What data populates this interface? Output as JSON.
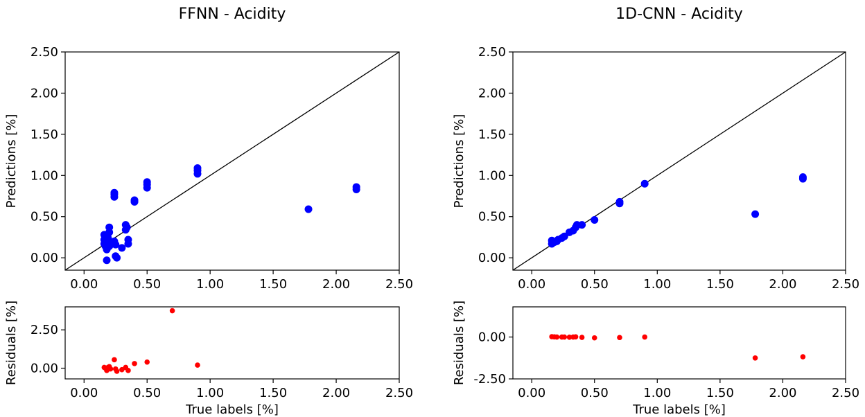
{
  "chart_data": [
    {
      "type": "scatter",
      "panel": "main",
      "title": "FFNN - Acidity",
      "xlabel": "",
      "ylabel": "Predictions [%]",
      "xlim": [
        -0.15,
        2.5
      ],
      "ylim": [
        -0.15,
        2.5
      ],
      "xticks": [
        "0.00",
        "0.50",
        "1.00",
        "1.50",
        "2.00",
        "2.50"
      ],
      "yticks": [
        "0.00",
        "0.50",
        "1.00",
        "1.50",
        "2.00",
        "2.50"
      ],
      "xtick_values": [
        0,
        0.5,
        1,
        1.5,
        2,
        2.5
      ],
      "ytick_values": [
        0,
        0.5,
        1,
        1.5,
        2,
        2.5
      ],
      "color": "#0000ff",
      "identity_line": true,
      "points": [
        [
          0.16,
          0.28
        ],
        [
          0.16,
          0.22
        ],
        [
          0.16,
          0.17
        ],
        [
          0.17,
          0.14
        ],
        [
          0.18,
          0.1
        ],
        [
          0.18,
          -0.03
        ],
        [
          0.19,
          0.19
        ],
        [
          0.19,
          0.24
        ],
        [
          0.2,
          0.31
        ],
        [
          0.2,
          0.37
        ],
        [
          0.2,
          0.14
        ],
        [
          0.21,
          0.16
        ],
        [
          0.24,
          0.77
        ],
        [
          0.24,
          0.79
        ],
        [
          0.24,
          0.74
        ],
        [
          0.24,
          0.2
        ],
        [
          0.25,
          0.16
        ],
        [
          0.25,
          0.02
        ],
        [
          0.26,
          0.0
        ],
        [
          0.3,
          0.12
        ],
        [
          0.33,
          0.34
        ],
        [
          0.33,
          0.4
        ],
        [
          0.34,
          0.37
        ],
        [
          0.35,
          0.17
        ],
        [
          0.35,
          0.22
        ],
        [
          0.4,
          0.68
        ],
        [
          0.4,
          0.7
        ],
        [
          0.5,
          0.85
        ],
        [
          0.5,
          0.89
        ],
        [
          0.5,
          0.92
        ],
        [
          0.9,
          1.02
        ],
        [
          0.9,
          1.06
        ],
        [
          0.9,
          1.09
        ],
        [
          1.78,
          0.59
        ],
        [
          2.16,
          0.83
        ],
        [
          2.16,
          0.86
        ]
      ]
    },
    {
      "type": "scatter",
      "panel": "residuals",
      "title": "",
      "xlabel": "True labels [%]",
      "ylabel": "Residuals [%]",
      "xlim": [
        -0.15,
        2.5
      ],
      "ylim": [
        -0.7,
        4.0
      ],
      "xticks": [
        "0.00",
        "0.50",
        "1.00",
        "1.50",
        "2.00",
        "2.50"
      ],
      "yticks": [
        "0.00",
        "2.50"
      ],
      "xtick_values": [
        0,
        0.5,
        1,
        1.5,
        2,
        2.5
      ],
      "ytick_values": [
        0,
        2.5
      ],
      "color": "#ff0000",
      "points": [
        [
          0.16,
          0.05
        ],
        [
          0.17,
          0.0
        ],
        [
          0.18,
          -0.15
        ],
        [
          0.19,
          0.05
        ],
        [
          0.2,
          0.1
        ],
        [
          0.21,
          -0.05
        ],
        [
          0.24,
          0.55
        ],
        [
          0.25,
          -0.05
        ],
        [
          0.26,
          -0.2
        ],
        [
          0.3,
          -0.1
        ],
        [
          0.33,
          0.05
        ],
        [
          0.35,
          -0.15
        ],
        [
          0.4,
          0.3
        ],
        [
          0.5,
          0.4
        ],
        [
          0.7,
          3.75
        ],
        [
          0.9,
          0.2
        ]
      ]
    },
    {
      "type": "scatter",
      "panel": "main",
      "title": "1D-CNN - Acidity",
      "xlabel": "",
      "ylabel": "Predictions [%]",
      "xlim": [
        -0.15,
        2.5
      ],
      "ylim": [
        -0.15,
        2.5
      ],
      "xticks": [
        "0.00",
        "0.50",
        "1.00",
        "1.50",
        "2.00",
        "2.50"
      ],
      "yticks": [
        "0.00",
        "0.50",
        "1.00",
        "1.50",
        "2.00",
        "2.50"
      ],
      "xtick_values": [
        0,
        0.5,
        1,
        1.5,
        2,
        2.5
      ],
      "ytick_values": [
        0,
        0.5,
        1,
        1.5,
        2,
        2.5
      ],
      "color": "#0000ff",
      "identity_line": true,
      "points": [
        [
          0.16,
          0.17
        ],
        [
          0.16,
          0.21
        ],
        [
          0.18,
          0.19
        ],
        [
          0.2,
          0.2
        ],
        [
          0.21,
          0.22
        ],
        [
          0.24,
          0.24
        ],
        [
          0.26,
          0.26
        ],
        [
          0.3,
          0.31
        ],
        [
          0.33,
          0.33
        ],
        [
          0.35,
          0.37
        ],
        [
          0.36,
          0.4
        ],
        [
          0.4,
          0.4
        ],
        [
          0.5,
          0.46
        ],
        [
          0.7,
          0.66
        ],
        [
          0.7,
          0.68
        ],
        [
          0.9,
          0.9
        ],
        [
          1.78,
          0.53
        ],
        [
          2.16,
          0.96
        ],
        [
          2.16,
          0.98
        ]
      ]
    },
    {
      "type": "scatter",
      "panel": "residuals",
      "title": "",
      "xlabel": "True labels [%]",
      "ylabel": "Residuals [%]",
      "xlim": [
        -0.15,
        2.5
      ],
      "ylim": [
        -2.5,
        1.8
      ],
      "xticks": [
        "0.00",
        "0.50",
        "1.00",
        "1.50",
        "2.00",
        "2.50"
      ],
      "yticks": [
        "0.00",
        "-2.50"
      ],
      "xtick_values": [
        0,
        0.5,
        1,
        1.5,
        2,
        2.5
      ],
      "ytick_values": [
        0,
        -2.5
      ],
      "color": "#ff0000",
      "points": [
        [
          0.16,
          0.02
        ],
        [
          0.18,
          0.01
        ],
        [
          0.2,
          0.0
        ],
        [
          0.24,
          0.0
        ],
        [
          0.26,
          0.0
        ],
        [
          0.3,
          -0.01
        ],
        [
          0.33,
          0.0
        ],
        [
          0.35,
          0.01
        ],
        [
          0.4,
          -0.02
        ],
        [
          0.5,
          -0.05
        ],
        [
          0.7,
          -0.03
        ],
        [
          0.9,
          0.0
        ],
        [
          1.78,
          -1.25
        ],
        [
          2.16,
          -1.18
        ]
      ]
    }
  ]
}
